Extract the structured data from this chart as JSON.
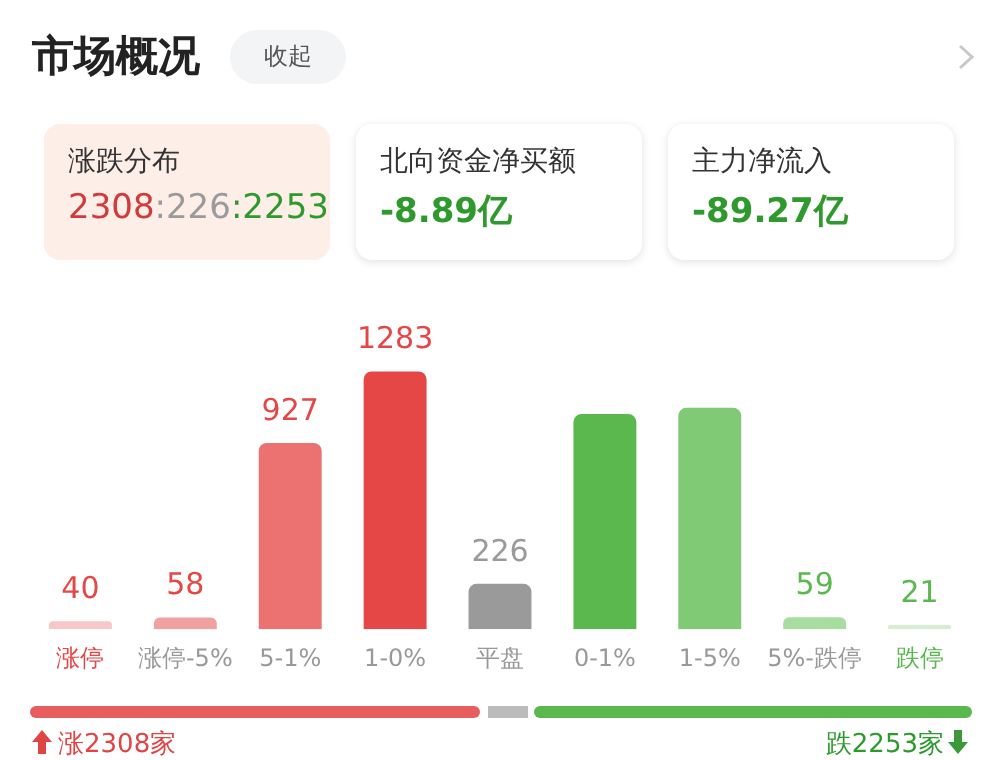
{
  "chart_data": {
    "type": "bar",
    "title": "市场概况",
    "categories": [
      "涨停",
      "涨停-5%",
      "5-1%",
      "1-0%",
      "平盘",
      "0-1%",
      "1-5%",
      "5%-跌停",
      "跌停"
    ],
    "values": [
      40,
      58,
      927,
      1283,
      226,
      1071,
      1102,
      59,
      21
    ],
    "colors": [
      "#f8c8c8",
      "#f0a2a2",
      "#ec7272",
      "#e54747",
      "#9a9a9a",
      "#5bb84e",
      "#80c975",
      "#a9dca1",
      "#d4efd0"
    ],
    "value_labels": [
      "40",
      "58",
      "927",
      "1283",
      "226",
      null,
      null,
      "59",
      "21"
    ],
    "grid": false,
    "legend": false,
    "annotations": [
      "收起",
      "涨跌分布",
      "2308:226:2253",
      "北向资金净买额",
      "-8.89亿",
      "主力净流入",
      "-89.27亿",
      "涨2308家",
      "跌2253家"
    ]
  }
}
